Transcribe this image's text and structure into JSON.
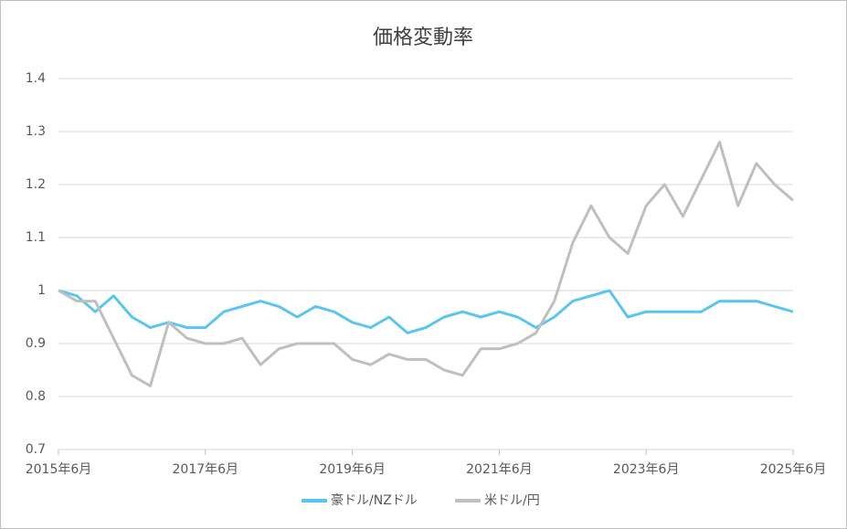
{
  "chart_data": {
    "type": "line",
    "title": "価格変動率",
    "x": [
      "2015-06",
      "2015-09",
      "2015-12",
      "2016-03",
      "2016-06",
      "2016-09",
      "2016-12",
      "2017-03",
      "2017-06",
      "2017-09",
      "2017-12",
      "2018-03",
      "2018-06",
      "2018-09",
      "2018-12",
      "2019-03",
      "2019-06",
      "2019-09",
      "2019-12",
      "2020-03",
      "2020-06",
      "2020-09",
      "2020-12",
      "2021-03",
      "2021-06",
      "2021-09",
      "2021-12",
      "2022-03",
      "2022-06",
      "2022-09",
      "2022-12",
      "2023-03",
      "2023-06",
      "2023-09",
      "2023-12",
      "2024-03",
      "2024-06",
      "2024-09",
      "2024-12",
      "2025-03",
      "2025-06"
    ],
    "series": [
      {
        "name": "豪ドル/NZドル",
        "color": "#5bc5f2",
        "values": [
          1.0,
          0.99,
          0.96,
          0.99,
          0.95,
          0.93,
          0.94,
          0.93,
          0.93,
          0.96,
          0.97,
          0.98,
          0.97,
          0.95,
          0.97,
          0.96,
          0.94,
          0.93,
          0.95,
          0.92,
          0.93,
          0.95,
          0.96,
          0.95,
          0.96,
          0.95,
          0.93,
          0.95,
          0.98,
          0.99,
          1.0,
          0.95,
          0.96,
          0.96,
          0.96,
          0.96,
          0.98,
          0.98,
          0.98,
          0.97,
          0.96
        ]
      },
      {
        "name": "米ドル/円",
        "color": "#bfbfbf",
        "values": [
          1.0,
          0.98,
          0.98,
          0.91,
          0.84,
          0.82,
          0.94,
          0.91,
          0.9,
          0.9,
          0.91,
          0.86,
          0.89,
          0.9,
          0.9,
          0.9,
          0.87,
          0.86,
          0.88,
          0.87,
          0.87,
          0.85,
          0.84,
          0.89,
          0.89,
          0.9,
          0.92,
          0.98,
          1.09,
          1.16,
          1.1,
          1.07,
          1.16,
          1.2,
          1.14,
          1.21,
          1.28,
          1.16,
          1.24,
          1.2,
          1.17
        ]
      }
    ],
    "xticks": [
      {
        "value": "2015-06",
        "label": "2015年6月"
      },
      {
        "value": "2017-06",
        "label": "2017年6月"
      },
      {
        "value": "2019-06",
        "label": "2019年6月"
      },
      {
        "value": "2021-06",
        "label": "2021年6月"
      },
      {
        "value": "2023-06",
        "label": "2023年6月"
      },
      {
        "value": "2025-06",
        "label": "2025年6月"
      }
    ],
    "xlim": [
      "2015-06",
      "2025-06"
    ],
    "ylim": [
      0.7,
      1.4
    ],
    "yticks": [
      0.7,
      0.8,
      0.9,
      1,
      1.1,
      1.2,
      1.3,
      1.4
    ],
    "grid": true,
    "legend": "bottom"
  }
}
